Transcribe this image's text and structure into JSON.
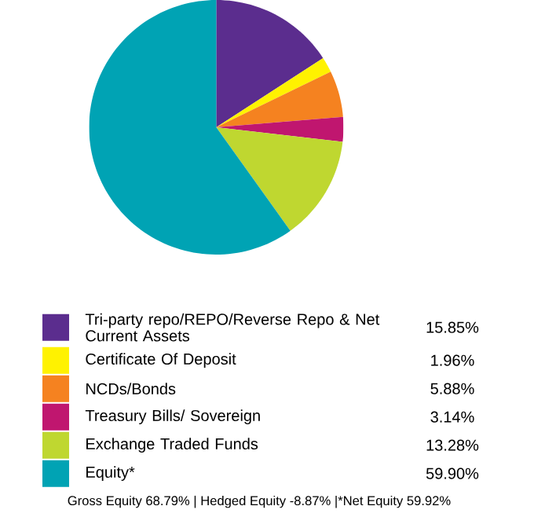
{
  "chart_data": {
    "type": "pie",
    "categories": [
      "Tri-party repo/REPO/Reverse Repo & Net Current Assets",
      "Certificate Of Deposit",
      "NCDs/Bonds",
      "Treasury Bills/ Sovereign",
      "Exchange Traded Funds",
      "Equity*"
    ],
    "values": [
      15.85,
      1.96,
      5.88,
      3.14,
      13.28,
      59.9
    ],
    "colors": [
      "#5b2d8e",
      "#fff200",
      "#f58220",
      "#c0166f",
      "#bfd730",
      "#00a3b4"
    ],
    "value_labels": [
      "15.85%",
      "1.96%",
      "5.88%",
      "3.14%",
      "13.28%",
      "59.90%"
    ],
    "legend": "bottom",
    "annotations": [
      "Gross Equity 68.79% | Hedged Equity -8.87% |*Net Equity 59.92%"
    ]
  }
}
